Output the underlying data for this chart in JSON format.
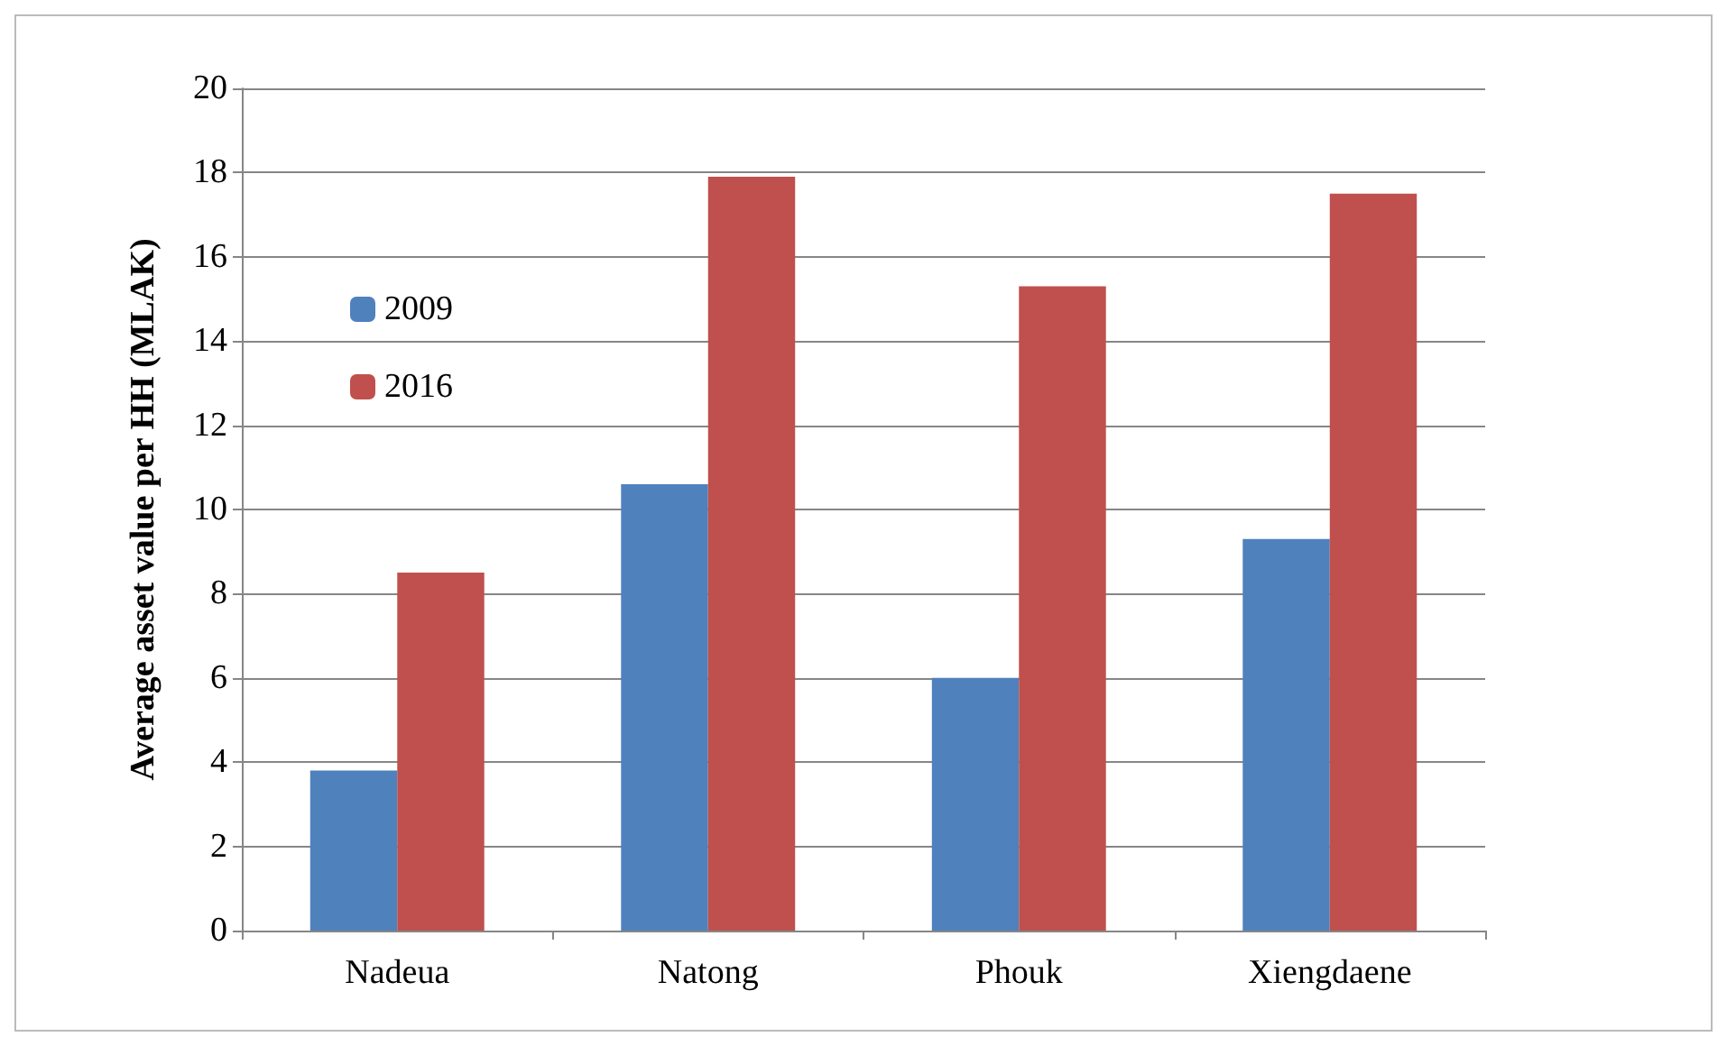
{
  "chart_data": {
    "type": "bar",
    "ylabel": "Average asset value per HH (MLAK)",
    "categories": [
      "Nadeua",
      "Natong",
      "Phouk",
      "Xiengdaene"
    ],
    "series": [
      {
        "name": "2009",
        "color": "#4f81bd",
        "values": [
          3.8,
          10.6,
          6.0,
          9.3
        ]
      },
      {
        "name": "2016",
        "color": "#c0504d",
        "values": [
          8.5,
          17.9,
          15.3,
          17.5
        ]
      }
    ],
    "ylim": [
      0,
      20
    ],
    "yticks": [
      0,
      2,
      4,
      6,
      8,
      10,
      12,
      14,
      16,
      18,
      20
    ],
    "grid": "y",
    "legend": "top left"
  }
}
